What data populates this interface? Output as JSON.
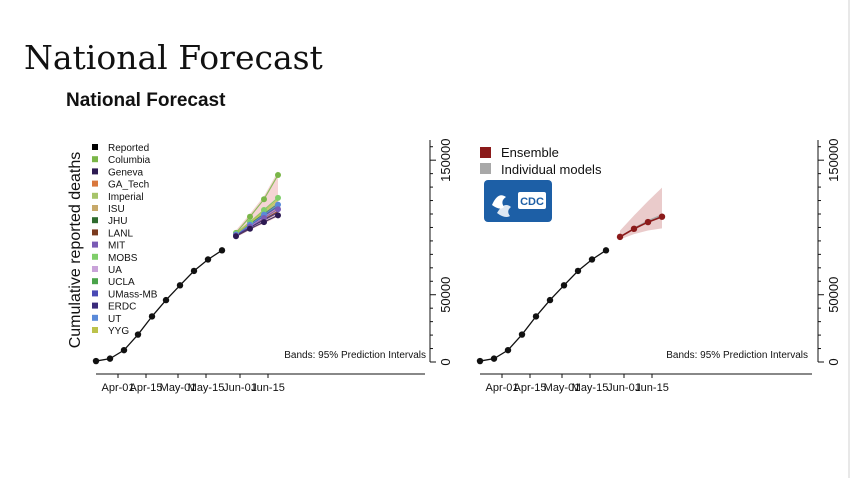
{
  "slide_title": "National Forecast",
  "chart_data": [
    {
      "type": "line",
      "title": "National Forecast",
      "ylabel": "Cumulative reported deaths",
      "ylim": [
        0,
        165000
      ],
      "y_ticks": [
        0,
        50000,
        150000
      ],
      "x_ticks": [
        "Apr-01",
        "Apr-15",
        "May-01",
        "May-15",
        "Jun-01",
        "Jun-15"
      ],
      "note": "Bands: 95% Prediction Intervals",
      "reported": {
        "name": "Reported",
        "x": [
          "Mar-21",
          "Mar-28",
          "Apr-04",
          "Apr-11",
          "Apr-18",
          "Apr-25",
          "May-02",
          "May-09",
          "May-16",
          "May-23"
        ],
        "values": [
          700,
          2500,
          8800,
          20400,
          33900,
          46000,
          57000,
          67700,
          76200,
          83000
        ]
      },
      "legend": [
        {
          "name": "Reported",
          "color": "#000000"
        },
        {
          "name": "Columbia",
          "color": "#7ab648"
        },
        {
          "name": "Geneva",
          "color": "#2d1a52"
        },
        {
          "name": "GA_Tech",
          "color": "#d9773c"
        },
        {
          "name": "Imperial",
          "color": "#a7c46a"
        },
        {
          "name": "ISU",
          "color": "#c7a96a"
        },
        {
          "name": "JHU",
          "color": "#2e6b2e"
        },
        {
          "name": "LANL",
          "color": "#7a3a1e"
        },
        {
          "name": "MIT",
          "color": "#7a5bb5"
        },
        {
          "name": "MOBS",
          "color": "#7fce6a"
        },
        {
          "name": "UA",
          "color": "#c9a3d9"
        },
        {
          "name": "UCLA",
          "color": "#4aa34a"
        },
        {
          "name": "UMass-MB",
          "color": "#4a4ab5"
        },
        {
          "name": "ERDC",
          "color": "#3a2a7a"
        },
        {
          "name": "UT",
          "color": "#5a8ad9"
        },
        {
          "name": "YYG",
          "color": "#bcc24a"
        }
      ],
      "forecast_x": [
        "May-30",
        "Jun-06",
        "Jun-13",
        "Jun-20"
      ],
      "forecasts": [
        {
          "name": "Columbia",
          "values": [
            96000,
            108000,
            121000,
            139000
          ]
        },
        {
          "name": "Geneva",
          "values": [
            93500,
            99000,
            104000,
            109000
          ]
        },
        {
          "name": "GA_Tech",
          "values": [
            94500,
            101000,
            107500,
            114000
          ]
        },
        {
          "name": "Imperial",
          "values": [
            95000,
            103000,
            111000,
            119000
          ]
        },
        {
          "name": "ISU",
          "values": [
            95500,
            104000,
            113000,
            122000
          ]
        },
        {
          "name": "JHU",
          "values": [
            94800,
            102500,
            110000,
            117500
          ]
        },
        {
          "name": "LANL",
          "values": [
            93800,
            100000,
            106000,
            112000
          ]
        },
        {
          "name": "MIT",
          "values": [
            94000,
            100500,
            107000,
            113500
          ]
        },
        {
          "name": "MOBS",
          "values": [
            95500,
            104000,
            113000,
            122000
          ]
        },
        {
          "name": "UA",
          "values": [
            94200,
            101000,
            108000,
            115000
          ]
        },
        {
          "name": "UCLA",
          "values": [
            95000,
            102000,
            109000,
            116000
          ]
        },
        {
          "name": "UMass-MB",
          "values": [
            94500,
            101500,
            108500,
            115500
          ]
        },
        {
          "name": "ERDC",
          "values": [
            94000,
            100000,
            105500,
            111000
          ]
        },
        {
          "name": "UT",
          "values": [
            94800,
            102000,
            109500,
            117000
          ]
        },
        {
          "name": "YYG",
          "values": [
            95200,
            103500,
            112000,
            120500
          ]
        }
      ]
    },
    {
      "type": "line",
      "ylim": [
        0,
        165000
      ],
      "y_ticks": [
        0,
        50000,
        150000
      ],
      "x_ticks": [
        "Apr-01",
        "Apr-15",
        "May-01",
        "May-15",
        "Jun-01",
        "Jun-15"
      ],
      "note": "Bands: 95% Prediction Intervals",
      "legend": [
        {
          "name": "Ensemble",
          "color": "#8b1a1a"
        },
        {
          "name": "Individual models",
          "color": "#a8a8a8"
        }
      ],
      "logo_text": "CDC",
      "reported": {
        "x": [
          "Mar-21",
          "Mar-28",
          "Apr-04",
          "Apr-11",
          "Apr-18",
          "Apr-25",
          "May-02",
          "May-09",
          "May-16",
          "May-23"
        ],
        "values": [
          700,
          2500,
          8800,
          20400,
          33900,
          46000,
          57000,
          67700,
          76200,
          83000
        ]
      },
      "ensemble": {
        "name": "Ensemble",
        "x": [
          "May-30",
          "Jun-06",
          "Jun-13",
          "Jun-20"
        ],
        "values": [
          93000,
          99000,
          104000,
          108000
        ]
      }
    }
  ]
}
